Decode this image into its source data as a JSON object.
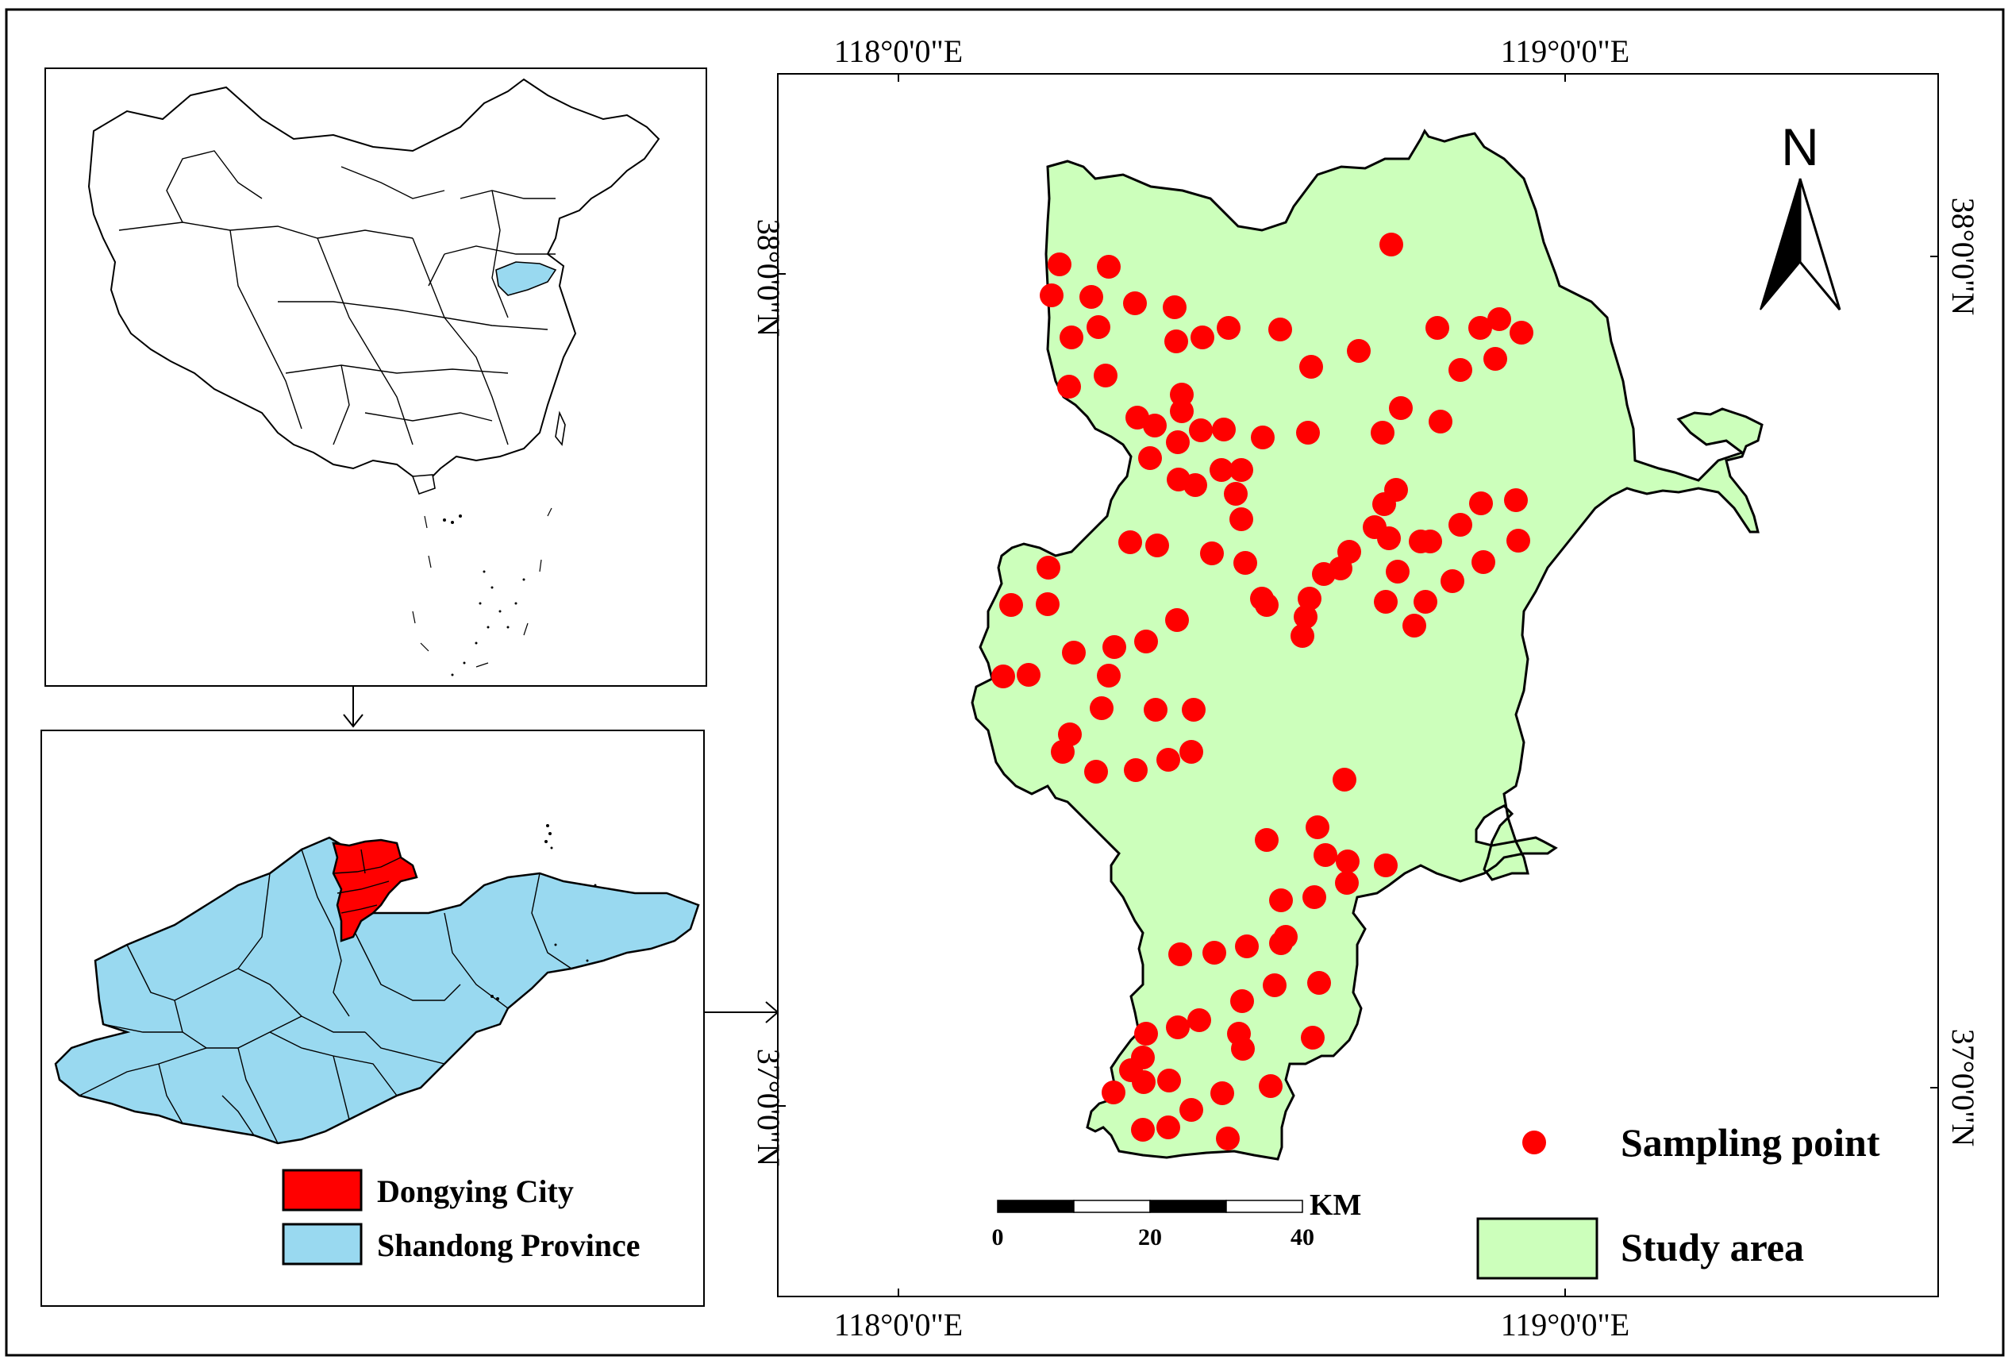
{
  "main_map": {
    "top_lon_labels": [
      "118°0'0\"E",
      "119°0'0\"E"
    ],
    "bottom_lon_labels": [
      "118°0'0\"E",
      "119°0'0\"E"
    ],
    "left_lat_labels": [
      "38°0'0\"N",
      "37°0'0\"N"
    ],
    "right_lat_labels": [
      "38°0'0\"N",
      "37°0'0\"N"
    ],
    "north_label": "N",
    "study_area_fill": "#ccffbb",
    "point_color": "#ff0000"
  },
  "scale_bar": {
    "ticks": [
      "0",
      "20",
      "40"
    ],
    "unit": "KM"
  },
  "legend_main": {
    "sampling_point": "Sampling point",
    "study_area": "Study area"
  },
  "legend_inset": {
    "dongying": "Dongying City",
    "shandong": "Shandong Province",
    "dongying_color": "#ff0000",
    "shandong_color": "#99d9f0"
  }
}
